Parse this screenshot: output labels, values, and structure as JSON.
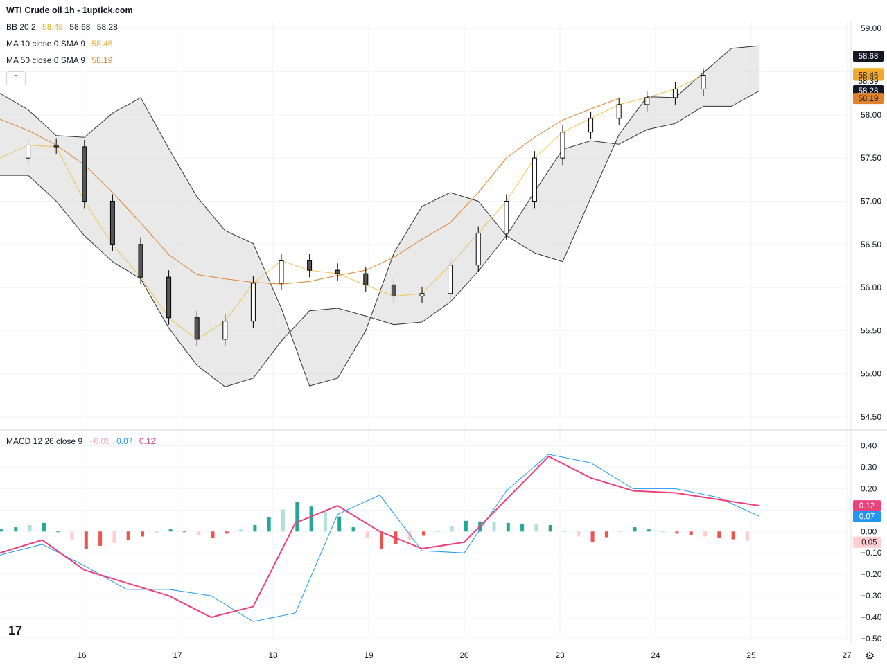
{
  "header": {
    "title": "WTI Crude oil  1h - 1uptick.com"
  },
  "legend": {
    "bb": {
      "label": "BB 20 2",
      "basis": "58.48",
      "upper": "58.68",
      "lower": "58.28"
    },
    "ma10": {
      "label": "MA 10 close 0 SMA 9",
      "value": "58.46"
    },
    "ma50": {
      "label": "MA 50 close 0 SMA 9",
      "value": "58.19"
    },
    "macd": {
      "label": "MACD 12 26 close 9",
      "hist": "−0.05",
      "macd": "0.07",
      "signal": "0.12"
    }
  },
  "controls": {
    "collapse_icon": "chevron-up-icon",
    "logo": "tradingview-logo",
    "settings_icon": "gear-icon"
  },
  "colors": {
    "up": "#ffffff",
    "down": "#555555",
    "wick": "#000000",
    "bb_fill": "#e0e0e0",
    "bb_line": "#333333",
    "ma10": "#f2c14e",
    "ma50": "#e0822c",
    "macd_line": "#2196f3",
    "signal_line": "#ec407a",
    "hist_pos_strong": "#26a69a",
    "hist_pos_weak": "#b2dfdb",
    "hist_neg_strong": "#ef5350",
    "hist_neg_weak": "#ffcdd2"
  },
  "chart_data": [
    {
      "type": "candlestick",
      "title": "WTI Crude oil  1h - 1uptick.com",
      "ylim": [
        54.42,
        59.09
      ],
      "y_ticks": [
        "59.00",
        "58.50",
        "58.00",
        "57.50",
        "57.00",
        "56.50",
        "56.00",
        "55.50",
        "55.00",
        "54.50"
      ],
      "x_ticks": [
        "16",
        "17",
        "18",
        "19",
        "20",
        "23",
        "24",
        "25",
        "27"
      ],
      "price_labels": [
        {
          "value": "58.68",
          "series": "BB upper",
          "color": "#131722"
        },
        {
          "value": "58.48",
          "series": "BB basis",
          "color": "#f7c543"
        },
        {
          "value": "58.46",
          "series": "MA 10",
          "color": "#f0a82f"
        },
        {
          "value": "58.39",
          "series": "Last price",
          "color": "none"
        },
        {
          "value": "58.28",
          "series": "BB lower",
          "color": "#131722"
        },
        {
          "value": "58.19",
          "series": "MA 50",
          "color": "#e0822c"
        }
      ],
      "bb_upper": [
        [
          0,
          58.25
        ],
        [
          2,
          58.06
        ],
        [
          4,
          57.76
        ],
        [
          6,
          57.74
        ],
        [
          8,
          58.02
        ],
        [
          10,
          58.2
        ],
        [
          12,
          57.61
        ],
        [
          14,
          57.05
        ],
        [
          16,
          56.66
        ],
        [
          18,
          56.51
        ],
        [
          20,
          55.76
        ],
        [
          22,
          54.86
        ],
        [
          24,
          54.95
        ],
        [
          26,
          55.5
        ],
        [
          28,
          56.4
        ],
        [
          30,
          56.94
        ],
        [
          32,
          57.1
        ],
        [
          34,
          57.0
        ],
        [
          36,
          56.6
        ],
        [
          38,
          56.4
        ],
        [
          40,
          56.3
        ],
        [
          42,
          57.04
        ],
        [
          44,
          57.77
        ],
        [
          46,
          58.21
        ],
        [
          48,
          58.2
        ],
        [
          50,
          58.49
        ],
        [
          52,
          58.77
        ],
        [
          54,
          58.8
        ]
      ],
      "bb_lower": [
        [
          0,
          57.3
        ],
        [
          2,
          57.3
        ],
        [
          4,
          57.0
        ],
        [
          6,
          56.6
        ],
        [
          8,
          56.3
        ],
        [
          10,
          56.1
        ],
        [
          12,
          55.53
        ],
        [
          14,
          55.1
        ],
        [
          16,
          54.85
        ],
        [
          18,
          54.95
        ],
        [
          20,
          55.38
        ],
        [
          22,
          55.73
        ],
        [
          24,
          55.76
        ],
        [
          26,
          55.67
        ],
        [
          28,
          55.57
        ],
        [
          30,
          55.6
        ],
        [
          32,
          55.83
        ],
        [
          34,
          56.19
        ],
        [
          36,
          56.6
        ],
        [
          38,
          57.11
        ],
        [
          40,
          57.6
        ],
        [
          42,
          57.7
        ],
        [
          44,
          57.66
        ],
        [
          46,
          57.83
        ],
        [
          48,
          57.9
        ],
        [
          50,
          58.1
        ],
        [
          52,
          58.1
        ],
        [
          54,
          58.28
        ]
      ],
      "ma10": [
        [
          0,
          57.5
        ],
        [
          2,
          57.65
        ],
        [
          4,
          57.63
        ],
        [
          6,
          57.0
        ],
        [
          8,
          56.5
        ],
        [
          10,
          56.12
        ],
        [
          12,
          55.65
        ],
        [
          14,
          55.4
        ],
        [
          16,
          55.61
        ],
        [
          18,
          56.05
        ],
        [
          20,
          56.31
        ],
        [
          22,
          56.2
        ],
        [
          24,
          56.16
        ],
        [
          26,
          56.03
        ],
        [
          28,
          55.9
        ],
        [
          30,
          55.93
        ],
        [
          32,
          56.26
        ],
        [
          34,
          56.63
        ],
        [
          36,
          57.0
        ],
        [
          38,
          57.5
        ],
        [
          40,
          57.8
        ],
        [
          42,
          57.96
        ],
        [
          44,
          58.12
        ],
        [
          46,
          58.2
        ],
        [
          48,
          58.3
        ],
        [
          50,
          58.46
        ]
      ],
      "ma50": [
        [
          0,
          57.95
        ],
        [
          2,
          57.82
        ],
        [
          4,
          57.65
        ],
        [
          6,
          57.42
        ],
        [
          8,
          57.1
        ],
        [
          10,
          56.75
        ],
        [
          12,
          56.38
        ],
        [
          14,
          56.15
        ],
        [
          16,
          56.1
        ],
        [
          18,
          56.06
        ],
        [
          20,
          56.04
        ],
        [
          22,
          56.07
        ],
        [
          24,
          56.14
        ],
        [
          26,
          56.2
        ],
        [
          28,
          56.35
        ],
        [
          30,
          56.56
        ],
        [
          32,
          56.75
        ],
        [
          34,
          57.1
        ],
        [
          36,
          57.5
        ],
        [
          38,
          57.74
        ],
        [
          40,
          57.94
        ],
        [
          42,
          58.07
        ],
        [
          44,
          58.19
        ]
      ]
    },
    {
      "type": "macd",
      "title": "MACD 12 26 close 9",
      "ylim": [
        -0.5,
        0.45
      ],
      "y_ticks": [
        "0.40",
        "0.30",
        "0.20",
        "0.10",
        "0.00",
        "−0.10",
        "−0.20",
        "−0.30",
        "−0.40",
        "−0.50"
      ],
      "price_labels": [
        {
          "value": "0.12",
          "series": "Signal",
          "color": "#ec407a"
        },
        {
          "value": "0.07",
          "series": "MACD",
          "color": "#2196f3"
        },
        {
          "value": "−0.05",
          "series": "Histogram",
          "color": "#ffcdd2"
        }
      ],
      "macd": [
        [
          0,
          -0.11
        ],
        [
          3,
          -0.06
        ],
        [
          6,
          -0.16
        ],
        [
          9,
          -0.27
        ],
        [
          12,
          -0.27
        ],
        [
          15,
          -0.3
        ],
        [
          18,
          -0.42
        ],
        [
          21,
          -0.38
        ],
        [
          24,
          0.08
        ],
        [
          27,
          0.17
        ],
        [
          30,
          -0.09
        ],
        [
          33,
          -0.1
        ],
        [
          36,
          0.19
        ],
        [
          39,
          0.36
        ],
        [
          42,
          0.32
        ],
        [
          45,
          0.2
        ],
        [
          48,
          0.2
        ],
        [
          51,
          0.16
        ],
        [
          54,
          0.07
        ]
      ],
      "signal": [
        [
          0,
          -0.1
        ],
        [
          3,
          -0.04
        ],
        [
          6,
          -0.18
        ],
        [
          9,
          -0.24
        ],
        [
          12,
          -0.3
        ],
        [
          15,
          -0.4
        ],
        [
          18,
          -0.35
        ],
        [
          21,
          0.04
        ],
        [
          24,
          0.12
        ],
        [
          27,
          0.0
        ],
        [
          30,
          -0.08
        ],
        [
          33,
          -0.05
        ],
        [
          36,
          0.15
        ],
        [
          39,
          0.35
        ],
        [
          42,
          0.25
        ],
        [
          45,
          0.19
        ],
        [
          48,
          0.18
        ],
        [
          51,
          0.15
        ],
        [
          54,
          0.12
        ]
      ],
      "hist": [
        [
          0,
          0.01
        ],
        [
          3,
          0.04
        ],
        [
          6,
          -0.08
        ],
        [
          9,
          -0.04
        ],
        [
          12,
          0.01
        ],
        [
          15,
          -0.03
        ],
        [
          18,
          0.03
        ],
        [
          21,
          0.14
        ],
        [
          24,
          0.07
        ],
        [
          27,
          -0.08
        ],
        [
          30,
          -0.02
        ],
        [
          33,
          0.05
        ],
        [
          36,
          0.04
        ],
        [
          39,
          0.03
        ],
        [
          42,
          -0.05
        ],
        [
          45,
          0.02
        ],
        [
          48,
          -0.01
        ],
        [
          51,
          -0.03
        ],
        [
          54,
          -0.05
        ]
      ]
    }
  ]
}
